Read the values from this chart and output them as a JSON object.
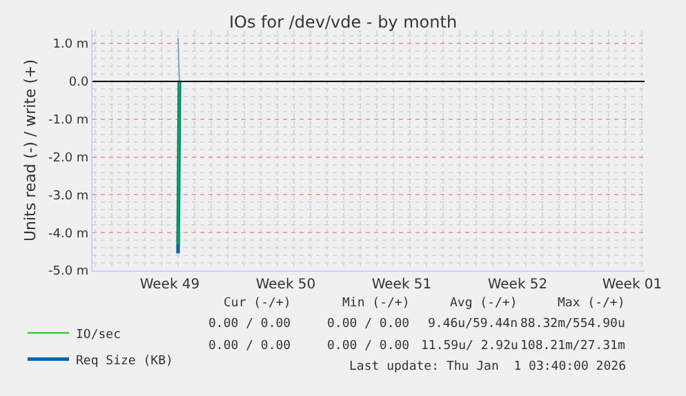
{
  "chart_data": {
    "type": "line",
    "title": "IOs for /dev/vde - by month",
    "ylabel": "Units read (-) / write (+)",
    "xlim": [
      "2025-11-29T20:00",
      "2026-01-02T04:00"
    ],
    "xticks": [
      {
        "value": "2025-12-04T12:00",
        "label": "Week 49"
      },
      {
        "value": "2025-12-11T12:00",
        "label": "Week 50"
      },
      {
        "value": "2025-12-18T12:00",
        "label": "Week 51"
      },
      {
        "value": "2025-12-25T12:00",
        "label": "Week 52"
      },
      {
        "value": "2026-01-01T10:00",
        "label": "Week 01"
      }
    ],
    "ylim": [
      -5.0,
      1.35
    ],
    "yticks": [
      {
        "value": -5,
        "label": "-5.0 m"
      },
      {
        "value": -4,
        "label": "-4.0 m"
      },
      {
        "value": -3,
        "label": "-3.0 m"
      },
      {
        "value": -2,
        "label": "-2.0 m"
      },
      {
        "value": -1,
        "label": "-1.0 m"
      },
      {
        "value": 0,
        "label": "0.0"
      },
      {
        "value": 1,
        "label": "1.0 m"
      }
    ],
    "series": [
      {
        "name": "Req Size (KB)",
        "color": "#0066b3",
        "x": [
          "2025-12-05T00:00",
          "2025-12-05T02:00"
        ],
        "values": [
          -4.55,
          0
        ]
      },
      {
        "name": "IO/sec",
        "color": "#00cc00",
        "x": [
          "2025-12-05T00:00",
          "2025-12-05T02:00"
        ],
        "values": [
          -4.3,
          0
        ]
      },
      {
        "color": "#6fa8dc",
        "x": [
          "2025-12-05T00:00",
          "2025-12-05T02:00"
        ],
        "values": [
          1.15,
          0
        ]
      }
    ],
    "ref_lines": [
      {
        "axis": "y",
        "value": 0,
        "color": "#000000"
      }
    ],
    "grid": true,
    "legend": "bottom left",
    "marker": "none",
    "line_style": "solid",
    "annotations": [
      "Cur (-/+)",
      "Min (-/+)",
      "Avg (-/+)",
      "Max (-/+)",
      "0.00 / 0.00",
      "0.00 / 0.00",
      "9.46u/59.44n",
      "88.32m/554.90u",
      "0.00 / 0.00",
      "0.00 / 0.00",
      "11.59u/ 2.92u",
      "108.21m/27.31m",
      "Last update: Thu Jan  1 03:40:00 2026"
    ]
  }
}
